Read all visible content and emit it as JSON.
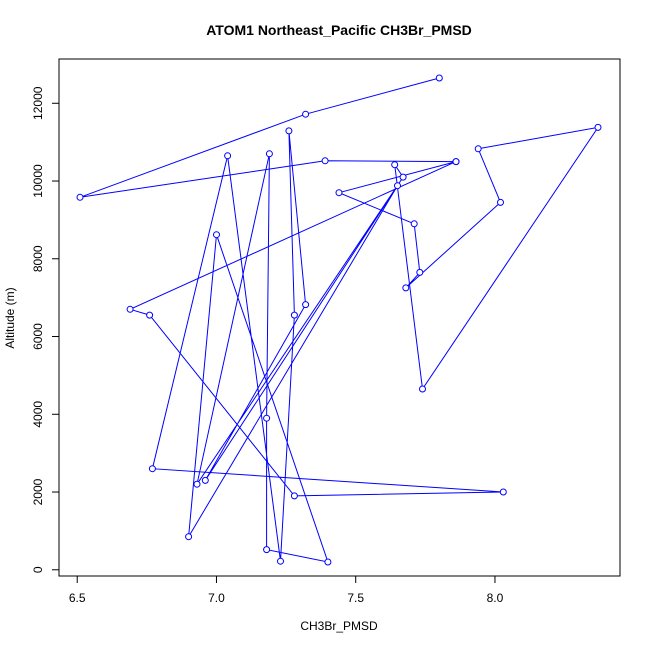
{
  "chart_data": {
    "type": "line",
    "title": "ATOM1 Northeast_Pacific CH3Br_PMSD",
    "xlabel": "CH3Br_PMSD",
    "ylabel": "Altitude (m)",
    "xlim": [
      6.5,
      8.4
    ],
    "ylim": [
      0,
      12700
    ],
    "x_ticks": [
      6.5,
      7.0,
      7.5,
      8.0
    ],
    "x_tick_labels": [
      "6.5",
      "7.0",
      "7.5",
      "8.0"
    ],
    "y_ticks": [
      0,
      2000,
      4000,
      6000,
      8000,
      10000,
      12000
    ],
    "y_tick_labels": [
      "0",
      "2000",
      "4000",
      "6000",
      "8000",
      "10000",
      "12000"
    ],
    "series": [
      {
        "color": "#0000ff",
        "x": [
          7.8,
          7.32,
          6.51,
          7.39,
          7.86,
          7.44,
          7.71,
          7.73,
          7.68,
          8.02,
          7.94,
          8.37,
          7.74,
          7.64,
          7.67,
          6.93,
          7.19,
          7.18,
          7.18,
          7.4,
          7.0,
          6.9,
          7.65,
          6.96,
          7.32,
          7.26,
          7.28,
          7.23,
          7.04,
          6.77,
          8.03,
          7.28,
          6.76,
          6.69,
          7.86
        ],
        "y": [
          12650,
          11720,
          9580,
          10520,
          10500,
          9700,
          8900,
          7650,
          7250,
          9450,
          10830,
          11380,
          4650,
          10420,
          10100,
          2200,
          10700,
          3900,
          520,
          200,
          8620,
          850,
          9880,
          2300,
          6820,
          11290,
          6550,
          220,
          10650,
          2600,
          2000,
          1900,
          6550,
          6700,
          10500
        ]
      }
    ]
  }
}
